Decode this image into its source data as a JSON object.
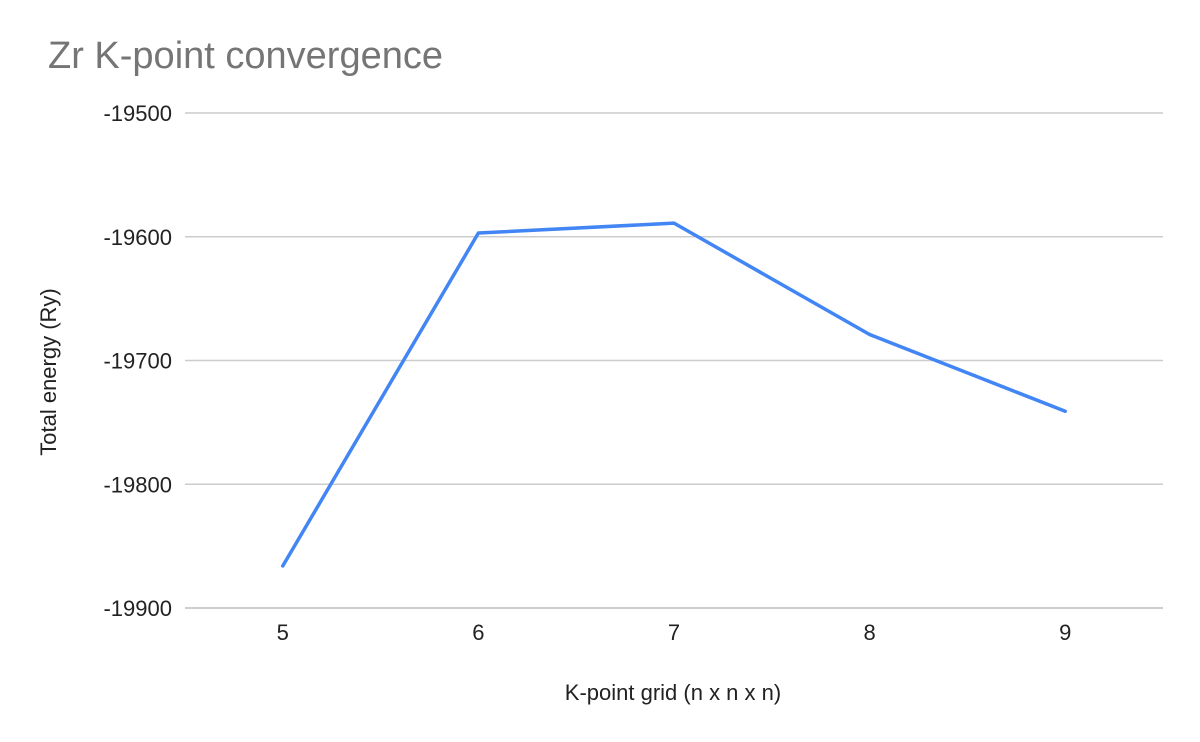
{
  "chart_data": {
    "type": "line",
    "title": "Zr K-point convergence",
    "xlabel": "K-point grid (n x n x n)",
    "ylabel": "Total energy (Ry)",
    "categories": [
      "5",
      "6",
      "7",
      "8",
      "9"
    ],
    "ylim": [
      -19900,
      -19500
    ],
    "yticks": [
      "-19500",
      "-19600",
      "-19700",
      "-19800",
      "-19900"
    ],
    "ytick_values": [
      -19500,
      -19600,
      -19700,
      -19800,
      -19900
    ],
    "grid": true,
    "legend": "none",
    "series": [
      {
        "values": [
          -19866,
          -19597,
          -19589,
          -19679,
          -19741
        ],
        "color": "#4285f4"
      }
    ]
  }
}
